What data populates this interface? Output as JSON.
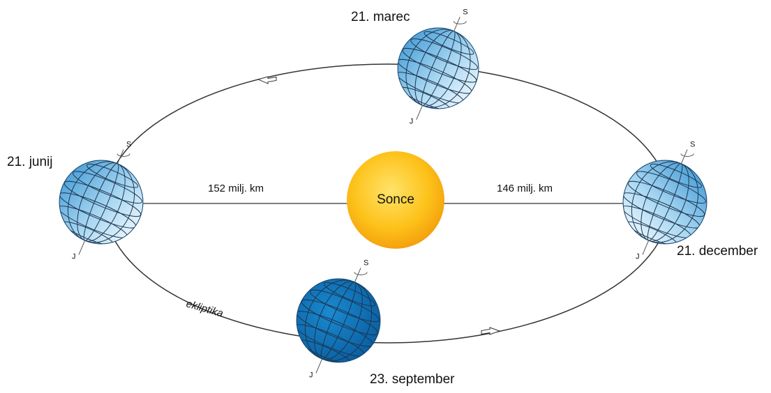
{
  "sun": {
    "label": "Sonce"
  },
  "distances": [
    "152 milj. km",
    "146 milj. km"
  ],
  "orbit_label": "ekliptika",
  "positions": [
    {
      "date": "21. marec",
      "north": "S",
      "south": "J"
    },
    {
      "date": "21. junij",
      "north": "S",
      "south": "J"
    },
    {
      "date": "21. december",
      "north": "S",
      "south": "J"
    },
    {
      "date": "23. september",
      "north": "S",
      "south": "J"
    }
  ]
}
